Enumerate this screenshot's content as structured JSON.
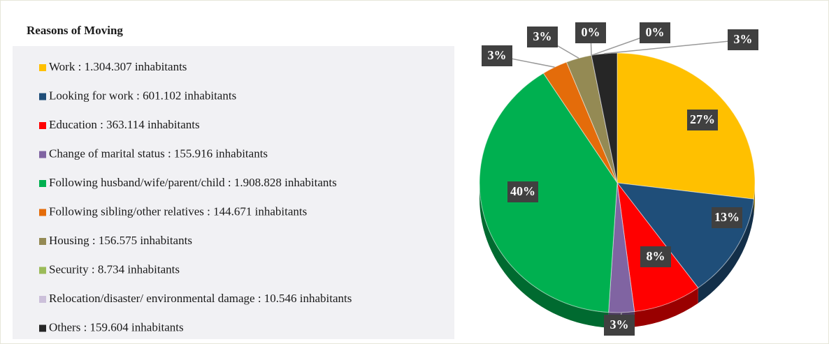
{
  "chart_data": {
    "type": "pie",
    "title": "Reasons of Moving",
    "categories": [
      "Work : 1.304.307 inhabitants",
      "Looking for work : 601.102 inhabitants",
      "Education : 363.114 inhabitants",
      "Change of marital status : 155.916 inhabitants",
      "Following husband/wife/parent/child : 1.908.828 inhabitants",
      "Following sibling/other relatives : 144.671 inhabitants",
      "Housing : 156.575 inhabitants",
      "Security : 8.734 inhabitants",
      "Relocation/disaster/ environmental damage : 10.546 inhabitants",
      "Others : 159.604 inhabitants"
    ],
    "values": [
      27,
      13,
      8,
      3,
      40,
      3,
      3,
      0,
      0,
      3
    ],
    "value_labels": [
      "27%",
      "13%",
      "8%",
      "3%",
      "40%",
      "3%",
      "3%",
      "0%",
      "0%",
      "3%"
    ],
    "colors": [
      "#ffc000",
      "#1f4e79",
      "#ff0000",
      "#8064a2",
      "#00b050",
      "#e46c0a",
      "#948a54",
      "#9bbb59",
      "#ccc0da",
      "#262626"
    ],
    "legend": "left"
  }
}
